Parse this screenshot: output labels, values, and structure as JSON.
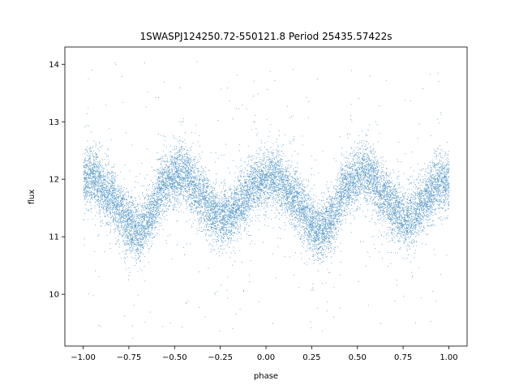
{
  "chart_data": {
    "type": "scatter",
    "title": "1SWASPJ124250.72-550121.8 Period 25435.57422s",
    "xlabel": "phase",
    "ylabel": "flux",
    "xlim": [
      -1.1,
      1.1
    ],
    "ylim": [
      9.1,
      14.3
    ],
    "x_ticks": [
      -1.0,
      -0.75,
      -0.5,
      -0.25,
      0.0,
      0.25,
      0.5,
      0.75,
      1.0
    ],
    "x_tick_labels": [
      "−1.00",
      "−0.75",
      "−0.50",
      "−0.25",
      "0.00",
      "0.25",
      "0.50",
      "0.75",
      "1.00"
    ],
    "y_ticks": [
      10,
      11,
      12,
      13,
      14
    ],
    "y_tick_labels": [
      "10",
      "11",
      "12",
      "13",
      "14"
    ],
    "grid": false,
    "point_color": "#1f77b4",
    "series": [
      {
        "model": "phase-folded light curve, repeating every 1.0 in phase",
        "phase_domain": [
          -1.0,
          1.0
        ],
        "profile_phase": [
          0.0,
          0.05,
          0.15,
          0.2,
          0.25,
          0.3,
          0.35,
          0.45,
          0.5,
          0.55,
          0.65,
          0.7,
          0.75,
          0.8,
          0.85,
          0.95,
          1.0
        ],
        "profile_flux": [
          12.0,
          12.05,
          11.7,
          11.45,
          11.2,
          11.1,
          11.3,
          11.95,
          12.05,
          12.1,
          11.7,
          11.45,
          11.35,
          11.35,
          11.55,
          11.95,
          12.0
        ],
        "scatter_sigma": 0.25,
        "outlier_range": [
          9.3,
          14.1
        ],
        "approx_point_count": 14000
      }
    ]
  }
}
